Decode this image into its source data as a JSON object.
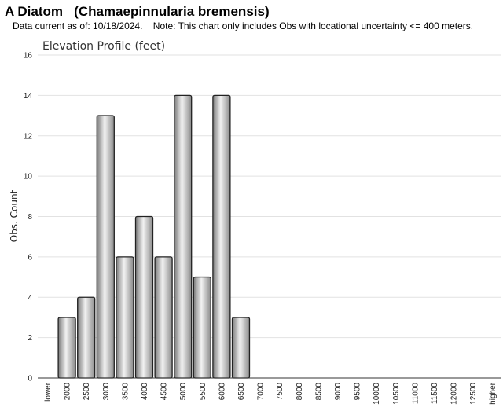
{
  "header": {
    "title": "A Diatom   (Chamaepinnularia bremensis)",
    "note": "Data current as of: 10/18/2024.    Note: This chart only includes Obs with locational uncertainty <= 400 meters."
  },
  "chart_data": {
    "type": "bar",
    "title": "Elevation Profile (feet)",
    "xlabel": "",
    "ylabel": "Obs. Count",
    "ylim": [
      0,
      16
    ],
    "yticks": [
      0,
      2,
      4,
      6,
      8,
      10,
      12,
      14,
      16
    ],
    "grid": true,
    "categories": [
      "lower",
      "2000",
      "2500",
      "3000",
      "3500",
      "4000",
      "4500",
      "5000",
      "5500",
      "6000",
      "6500",
      "7000",
      "7500",
      "8000",
      "8500",
      "9000",
      "9500",
      "10000",
      "10500",
      "11000",
      "11500",
      "12000",
      "12500",
      "higher"
    ],
    "values": [
      0,
      3,
      4,
      13,
      6,
      8,
      6,
      14,
      5,
      14,
      3,
      0,
      0,
      0,
      0,
      0,
      0,
      0,
      0,
      0,
      0,
      0,
      0,
      0
    ]
  }
}
